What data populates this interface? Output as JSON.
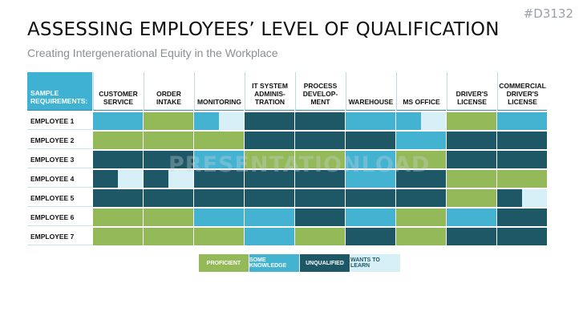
{
  "tag": "#D3132",
  "title": "ASSESSING EMPLOYEES’ LEVEL OF QUALIFICATION",
  "subtitle": "Creating Intergenerational Equity in the Workplace",
  "watermark": "PRESENTATIONLOAD",
  "corner_header": [
    "SAMPLE",
    "REQUIREMENTS:"
  ],
  "colors": {
    "P": "#93b958",
    "S": "#43b3d1",
    "U": "#1e5866",
    "W": "#d7eff6"
  },
  "columns": [
    [
      "CUSTOMER",
      "SERVICE"
    ],
    [
      "ORDER INTAKE"
    ],
    [
      "MONITORING"
    ],
    [
      "IT SYSTEM",
      "ADMINIS-",
      "TRATION"
    ],
    [
      "PROCESS",
      "DEVELOP-",
      "MENT"
    ],
    [
      "WAREHOUSE"
    ],
    [
      "MS OFFICE"
    ],
    [
      "DRIVER'S",
      "LICENSE"
    ],
    [
      "COMMERCIAL",
      "DRIVER'S",
      "LICENSE"
    ]
  ],
  "rows": [
    {
      "name": "EMPLOYEE 1",
      "cells": [
        "S",
        "P",
        "S/W",
        "U",
        "U",
        "S",
        "S/W",
        "P",
        "S"
      ]
    },
    {
      "name": "EMPLOYEE 2",
      "cells": [
        "P",
        "P",
        "P",
        "U",
        "U",
        "U",
        "S",
        "U",
        "U"
      ]
    },
    {
      "name": "EMPLOYEE 3",
      "cells": [
        "U",
        "U",
        "S",
        "P",
        "P",
        "S",
        "P",
        "U",
        "U"
      ]
    },
    {
      "name": "EMPLOYEE 4",
      "cells": [
        "U/W",
        "U/W",
        "U",
        "U",
        "U",
        "S",
        "U",
        "P",
        "P"
      ]
    },
    {
      "name": "EMPLOYEE 5",
      "cells": [
        "U",
        "U",
        "U",
        "U",
        "U",
        "U",
        "U",
        "P",
        "U/W"
      ]
    },
    {
      "name": "EMPLOYEE 6",
      "cells": [
        "P",
        "P",
        "S",
        "S",
        "U",
        "S",
        "P",
        "S",
        "U"
      ]
    },
    {
      "name": "EMPLOYEE 7",
      "cells": [
        "P",
        "P",
        "P",
        "S",
        "P",
        "U",
        "P",
        "U",
        "U"
      ]
    }
  ],
  "legend": [
    {
      "key": "P",
      "label": "PROFICIENT",
      "text_color": "#ffffff"
    },
    {
      "key": "S",
      "label": "SOME KNOWLEDGE",
      "text_color": "#ffffff"
    },
    {
      "key": "U",
      "label": "UNQUALIFIED",
      "text_color": "#ffffff"
    },
    {
      "key": "W",
      "label": "WANTS TO LEARN",
      "text_color": "#1e5866"
    }
  ]
}
